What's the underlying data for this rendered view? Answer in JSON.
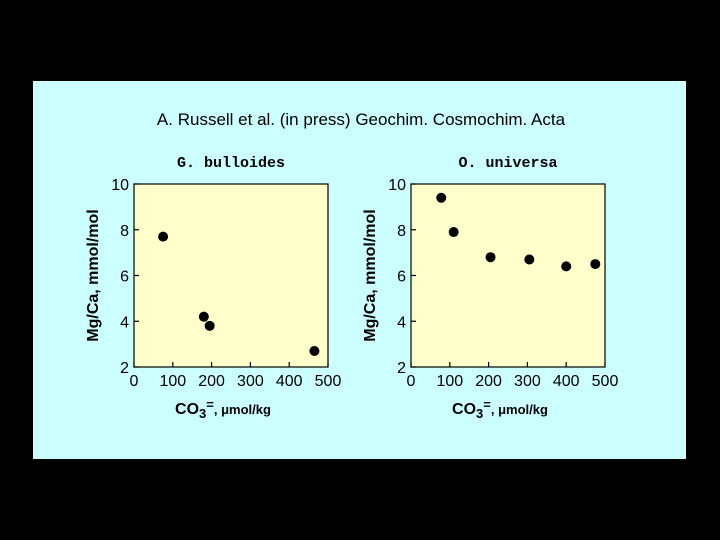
{
  "citation": "A. Russell et al. (in press) Geochim. Cosmochim. Acta",
  "chart_data": [
    {
      "type": "scatter",
      "title": "G. bulloides",
      "ylabel": "Mg/Ca,  mmol/mol",
      "xlabel": {
        "main": "CO",
        "sub": "3",
        "sup": "=",
        "units": ", μmol/kg"
      },
      "xlim": [
        0,
        500
      ],
      "ylim": [
        2,
        10
      ],
      "xticks": [
        0,
        100,
        200,
        300,
        400,
        500
      ],
      "yticks": [
        2,
        4,
        6,
        8,
        10
      ],
      "grid": false,
      "x": [
        75,
        180,
        195,
        465
      ],
      "y": [
        7.7,
        4.2,
        3.8,
        2.7
      ]
    },
    {
      "type": "scatter",
      "title": "O. universa",
      "ylabel": "Mg/Ca,  mmol/mol",
      "xlabel": {
        "main": "CO",
        "sub": "3",
        "sup": "=",
        "units": ", μmol/kg"
      },
      "xlim": [
        0,
        500
      ],
      "ylim": [
        2,
        10
      ],
      "xticks": [
        0,
        100,
        200,
        300,
        400,
        500
      ],
      "yticks": [
        2,
        4,
        6,
        8,
        10
      ],
      "grid": false,
      "x": [
        78,
        110,
        205,
        305,
        400,
        475
      ],
      "y": [
        9.4,
        7.9,
        6.8,
        6.7,
        6.4,
        6.5
      ]
    }
  ],
  "colors": {
    "background": "#000000",
    "slide": "#ccffff",
    "plot_area": "#ffffcc",
    "marker": "#000000"
  }
}
